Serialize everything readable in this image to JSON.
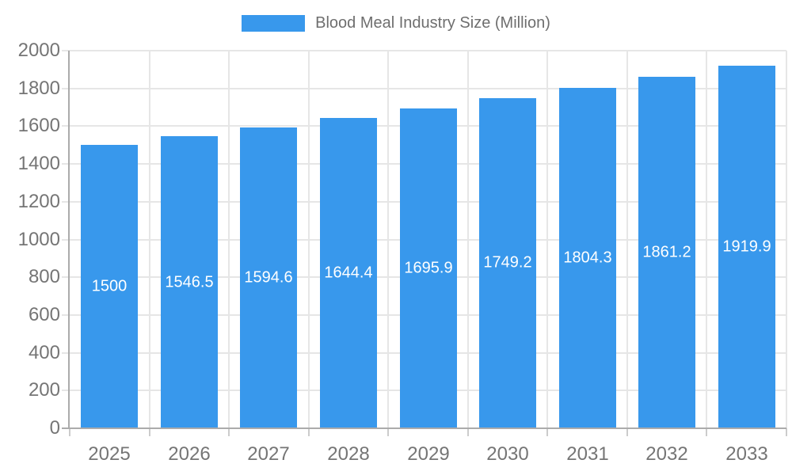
{
  "legend": {
    "label": "Blood Meal Industry Size (Million)"
  },
  "chart_data": {
    "type": "bar",
    "title": "Blood Meal Industry Size (Million)",
    "series_name": "Blood Meal Industry Size (Million)",
    "categories": [
      "2025",
      "2026",
      "2027",
      "2028",
      "2029",
      "2030",
      "2031",
      "2032",
      "2033"
    ],
    "values": [
      1500,
      1546.5,
      1594.6,
      1644.4,
      1695.9,
      1749.2,
      1804.3,
      1861.2,
      1919.9
    ],
    "value_labels": [
      "1500",
      "1546.5",
      "1594.6",
      "1644.4",
      "1695.9",
      "1749.2",
      "1804.3",
      "1861.2",
      "1919.9"
    ],
    "xlabel": "",
    "ylabel": "",
    "ylim": [
      0,
      2000
    ],
    "ytick_step": 200,
    "grid": true,
    "legend_position": "top",
    "colors": {
      "bar": "#3898EC",
      "value_label": "#FFFFFF",
      "axis_label": "#757575",
      "legend_label": "#6E6E6E",
      "gridline": "#E6E6E6",
      "axis_line": "#ABABAB",
      "background": "#FFFFFF"
    }
  }
}
